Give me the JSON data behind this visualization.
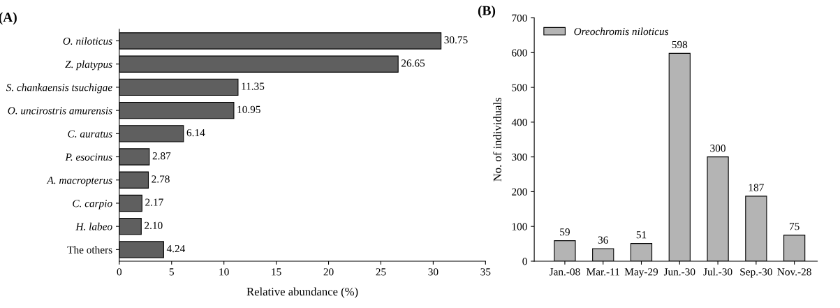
{
  "chart_data": [
    {
      "type": "bar",
      "orientation": "horizontal",
      "title": "(A)",
      "xlabel": "Relative abundance (%)",
      "categories": [
        "O. niloticus",
        "Z. platypus",
        "S. chankaensis tsuchigae",
        "O. uncirostris amurensis",
        "C. auratus",
        "P. esocinus",
        "A. macropterus",
        "C. carpio",
        "H. labeo",
        "The others"
      ],
      "values": [
        30.75,
        26.65,
        11.35,
        10.95,
        6.14,
        2.87,
        2.78,
        2.17,
        2.1,
        4.24
      ],
      "value_labels": [
        "30.75",
        "26.65",
        "11.35",
        "10.95",
        "6.14",
        "2.87",
        "2.78",
        "2.17",
        "2.10",
        "4.24"
      ],
      "color": "#5f5f5f",
      "xlim": [
        0,
        35
      ],
      "xticks": [
        0,
        5,
        10,
        15,
        20,
        25,
        30,
        35
      ],
      "grid": false,
      "legend": false
    },
    {
      "type": "bar",
      "title": "(B)",
      "ylabel": "No. of individuals",
      "categories": [
        "Jan.-08",
        "Mar.-11",
        "May-29",
        "Jun.-30",
        "Jul.-30",
        "Sep.-30",
        "Nov.-28"
      ],
      "series": [
        {
          "name": "Oreochromis niloticus",
          "color": "#b4b4b4",
          "values": [
            59,
            36,
            51,
            598,
            300,
            187,
            75
          ]
        }
      ],
      "data_labels": true,
      "ylim": [
        0,
        700
      ],
      "yticks": [
        0,
        100,
        200,
        300,
        400,
        500,
        600,
        700
      ],
      "grid": false,
      "legend": "top left"
    }
  ]
}
